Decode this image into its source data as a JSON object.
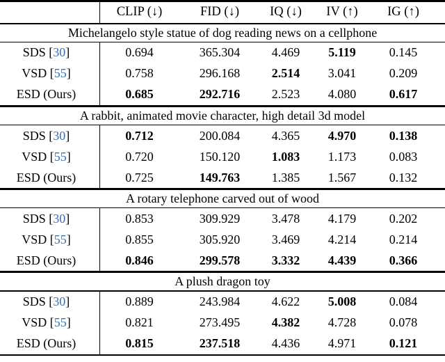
{
  "colors": {
    "citation_blue": "#3a6fb5",
    "rule_black": "#000000",
    "background": "#ffffff"
  },
  "table": {
    "columns": [
      {
        "id": "clip",
        "label": "CLIP (↓)"
      },
      {
        "id": "fid",
        "label": "FID (↓)"
      },
      {
        "id": "iq",
        "label": "IQ (↓)"
      },
      {
        "id": "iv",
        "label": "IV (↑)"
      },
      {
        "id": "ig",
        "label": "IG (↑)"
      }
    ],
    "blocks": [
      {
        "caption": "Michelangelo style statue of dog reading news on a cellphone",
        "rows": [
          {
            "label_prefix": "SDS [",
            "cite": "30",
            "label_suffix": "]",
            "values": [
              "0.694",
              "365.304",
              "4.469",
              "5.119",
              "0.145"
            ],
            "bold": [
              false,
              false,
              false,
              true,
              false
            ]
          },
          {
            "label_prefix": "VSD [",
            "cite": "55",
            "label_suffix": "]",
            "values": [
              "0.758",
              "296.168",
              "2.514",
              "3.041",
              "0.209"
            ],
            "bold": [
              false,
              false,
              true,
              false,
              false
            ]
          },
          {
            "label_prefix": "ESD (Ours)",
            "cite": "",
            "label_suffix": "",
            "values": [
              "0.685",
              "292.716",
              "2.523",
              "4.080",
              "0.617"
            ],
            "bold": [
              true,
              true,
              false,
              false,
              true
            ]
          }
        ]
      },
      {
        "caption": "A rabbit, animated movie character, high detail 3d model",
        "rows": [
          {
            "label_prefix": "SDS [",
            "cite": "30",
            "label_suffix": "]",
            "values": [
              "0.712",
              "200.084",
              "4.365",
              "4.970",
              "0.138"
            ],
            "bold": [
              true,
              false,
              false,
              true,
              true
            ]
          },
          {
            "label_prefix": "VSD [",
            "cite": "55",
            "label_suffix": "]",
            "values": [
              "0.720",
              "150.120",
              "1.083",
              "1.173",
              "0.083"
            ],
            "bold": [
              false,
              false,
              true,
              false,
              false
            ]
          },
          {
            "label_prefix": "ESD (Ours)",
            "cite": "",
            "label_suffix": "",
            "values": [
              "0.725",
              "149.763",
              "1.385",
              "1.567",
              "0.132"
            ],
            "bold": [
              false,
              true,
              false,
              false,
              false
            ]
          }
        ]
      },
      {
        "caption": "A rotary telephone carved out of wood",
        "rows": [
          {
            "label_prefix": "SDS [",
            "cite": "30",
            "label_suffix": "]",
            "values": [
              "0.853",
              "309.929",
              "3.478",
              "4.179",
              "0.202"
            ],
            "bold": [
              false,
              false,
              false,
              false,
              false
            ]
          },
          {
            "label_prefix": "VSD [",
            "cite": "55",
            "label_suffix": "]",
            "values": [
              "0.855",
              "305.920",
              "3.469",
              "4.214",
              "0.214"
            ],
            "bold": [
              false,
              false,
              false,
              false,
              false
            ]
          },
          {
            "label_prefix": "ESD (Ours)",
            "cite": "",
            "label_suffix": "",
            "values": [
              "0.846",
              "299.578",
              "3.332",
              "4.439",
              "0.366"
            ],
            "bold": [
              true,
              true,
              true,
              true,
              true
            ]
          }
        ]
      },
      {
        "caption": "A plush dragon toy",
        "rows": [
          {
            "label_prefix": "SDS [",
            "cite": "30",
            "label_suffix": "]",
            "values": [
              "0.889",
              "243.984",
              "4.622",
              "5.008",
              "0.084"
            ],
            "bold": [
              false,
              false,
              false,
              true,
              false
            ]
          },
          {
            "label_prefix": "VSD [",
            "cite": "55",
            "label_suffix": "]",
            "values": [
              "0.821",
              "273.495",
              "4.382",
              "4.728",
              "0.078"
            ],
            "bold": [
              false,
              false,
              true,
              false,
              false
            ]
          },
          {
            "label_prefix": "ESD (Ours)",
            "cite": "",
            "label_suffix": "",
            "values": [
              "0.815",
              "237.518",
              "4.436",
              "4.971",
              "0.121"
            ],
            "bold": [
              true,
              true,
              false,
              false,
              true
            ]
          }
        ]
      }
    ]
  }
}
